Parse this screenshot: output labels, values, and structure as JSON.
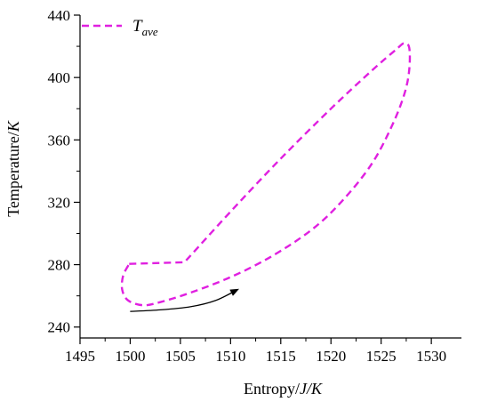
{
  "chart_data": {
    "type": "line",
    "xlabel_main": "Entropy/",
    "xlabel_unit": "J/K",
    "ylabel_main": "Temperature/",
    "ylabel_unit": "K",
    "xlim": [
      1495,
      1533
    ],
    "ylim": [
      233,
      440
    ],
    "x_ticks": [
      1495,
      1500,
      1505,
      1510,
      1515,
      1520,
      1525,
      1530
    ],
    "y_ticks": [
      240,
      280,
      320,
      360,
      400,
      440
    ],
    "legend": {
      "position": "top-left",
      "symbol": "T",
      "subscript": "ave"
    },
    "series": [
      {
        "name": "T_ave",
        "color": "#e020e0",
        "dash": "dashed",
        "x": [
          1499.9,
          1505.4,
          1510,
          1515,
          1520,
          1524,
          1526.5,
          1527.3,
          1527.8,
          1527.8,
          1527.3,
          1526,
          1524,
          1521,
          1518,
          1514,
          1510,
          1506,
          1503,
          1501.3,
          1499.8,
          1499.2,
          1499.3,
          1499.9
        ],
        "y": [
          280.5,
          281.5,
          314,
          348,
          380,
          404,
          418,
          422,
          419,
          405,
          389,
          368,
          344,
          320,
          302,
          285,
          272,
          262,
          256,
          254,
          257,
          264,
          273,
          280.5
        ]
      }
    ],
    "annotation_arrow": {
      "x": [
        1500,
        1503,
        1506,
        1508.5,
        1510.7
      ],
      "y": [
        250,
        251,
        253,
        257,
        264
      ],
      "color": "#000000"
    }
  }
}
